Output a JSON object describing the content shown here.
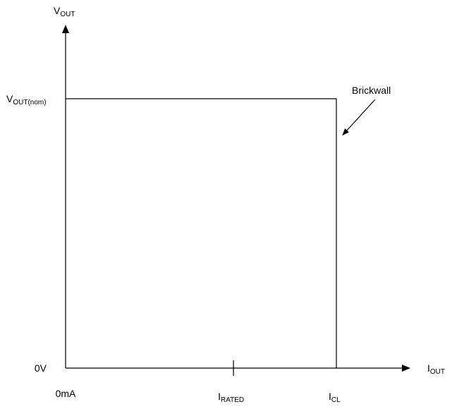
{
  "chart_data": {
    "type": "line",
    "x_axis": {
      "label": {
        "main": "I",
        "sub": "OUT"
      },
      "ticks": [
        {
          "id": "zero",
          "text": "0mA",
          "value": 0
        },
        {
          "id": "rated",
          "main": "I",
          "sub": "RATED",
          "value": 0.62
        },
        {
          "id": "cl",
          "main": "I",
          "sub": "CL",
          "value": 1.0
        }
      ]
    },
    "y_axis": {
      "label": {
        "main": "V",
        "sub": "OUT"
      },
      "ticks": [
        {
          "id": "zero",
          "text": "0V",
          "value": 0
        },
        {
          "id": "nom",
          "main": "V",
          "sub": "OUT(nom)",
          "value": 1.0
        }
      ]
    },
    "xlim": [
      0,
      1.27
    ],
    "ylim": [
      0,
      1.38
    ],
    "grid": false,
    "series": [
      {
        "points": [
          [
            0,
            1.0
          ],
          [
            1.0,
            1.0
          ],
          [
            1.0,
            0
          ]
        ],
        "color": "#000000"
      }
    ],
    "annotations": [
      {
        "id": "brickwall",
        "text": "Brickwall",
        "target": [
          1.0,
          0.86
        ]
      }
    ]
  }
}
